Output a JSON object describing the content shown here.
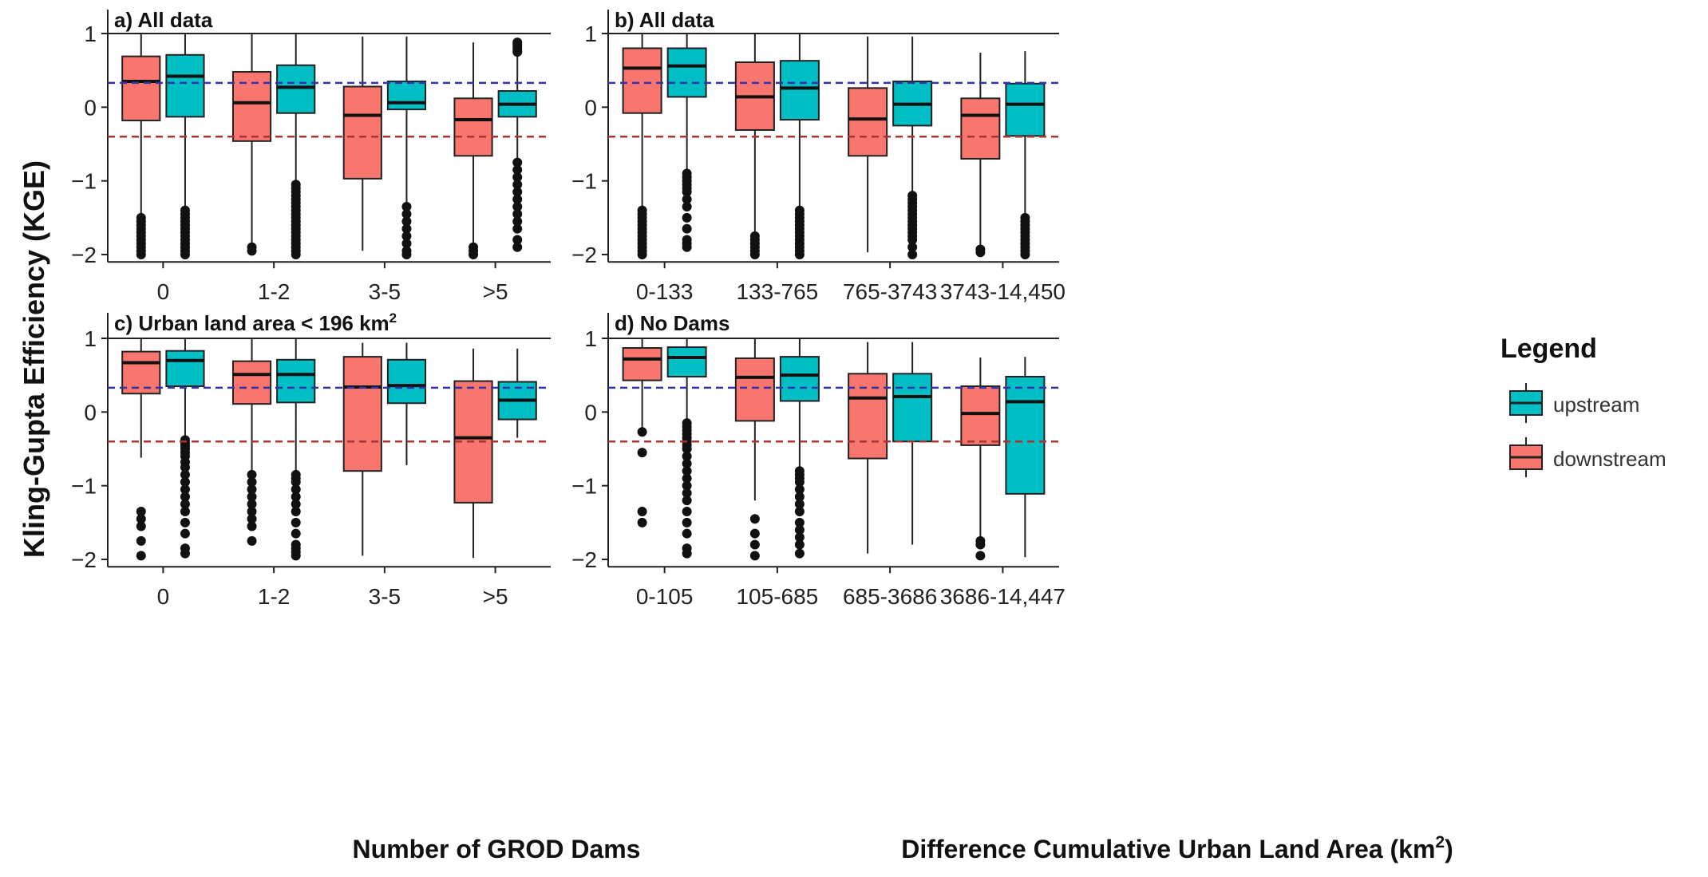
{
  "figure": {
    "y_axis_label": "Kling-Gupta Efficiency (KGE)",
    "legend": {
      "title": "Legend",
      "items": [
        {
          "label": "upstream",
          "color": "#00BFC4"
        },
        {
          "label": "downstream",
          "color": "#F8766D"
        }
      ]
    },
    "reference_lines": [
      {
        "name": "upstream-median-reference",
        "value": 0.33,
        "color": "#3333aa"
      },
      {
        "name": "downstream-median-reference",
        "value": -0.4,
        "color": "#aa3333"
      }
    ]
  },
  "chart_data": [
    {
      "type": "boxplot",
      "id": "a",
      "title": "a) All data",
      "xlabel": "",
      "ylabel": "Kling-Gupta Efficiency (KGE)",
      "ylim": [
        -2.1,
        1.05
      ],
      "yticks": [
        1,
        0,
        -1,
        -2
      ],
      "ytick_labels": [
        "1",
        "0",
        "−1",
        "−2"
      ],
      "categories": [
        "0",
        "1-2",
        "3-5",
        ">5"
      ],
      "series": [
        {
          "name": "downstream",
          "boxes": [
            {
              "min": -2.0,
              "q1": -0.18,
              "median": 0.35,
              "q3": 0.69,
              "max": 1.0,
              "outliers": [
                -1.5,
                -1.55,
                -1.6,
                -1.65,
                -1.7,
                -1.75,
                -1.8,
                -1.85,
                -1.9,
                -1.95,
                -2.0
              ]
            },
            {
              "min": -1.85,
              "q1": -0.46,
              "median": 0.06,
              "q3": 0.48,
              "max": 1.0,
              "outliers": [
                -1.9,
                -1.95
              ]
            },
            {
              "min": -1.95,
              "q1": -0.97,
              "median": -0.11,
              "q3": 0.28,
              "max": 0.96,
              "outliers": []
            },
            {
              "min": -1.85,
              "q1": -0.66,
              "median": -0.17,
              "q3": 0.12,
              "max": 0.88,
              "outliers": [
                -1.9,
                -1.95,
                -2.0
              ]
            }
          ]
        },
        {
          "name": "upstream",
          "boxes": [
            {
              "min": -2.0,
              "q1": -0.13,
              "median": 0.42,
              "q3": 0.71,
              "max": 1.0,
              "outliers": [
                -1.4,
                -1.45,
                -1.5,
                -1.55,
                -1.6,
                -1.65,
                -1.7,
                -1.75,
                -1.8,
                -1.85,
                -1.9,
                -1.95,
                -2.0
              ]
            },
            {
              "min": -1.0,
              "q1": -0.08,
              "median": 0.27,
              "q3": 0.57,
              "max": 1.0,
              "outliers": [
                -1.05,
                -1.1,
                -1.15,
                -1.2,
                -1.25,
                -1.3,
                -1.35,
                -1.4,
                -1.45,
                -1.5,
                -1.55,
                -1.6,
                -1.65,
                -1.7,
                -1.75,
                -1.8,
                -1.85,
                -1.9,
                -1.95,
                -2.0
              ]
            },
            {
              "min": -1.3,
              "q1": -0.03,
              "median": 0.06,
              "q3": 0.35,
              "max": 0.96,
              "outliers": [
                -1.35,
                -1.45,
                -1.55,
                -1.65,
                -1.75,
                -1.85,
                -1.95,
                -2.0
              ]
            },
            {
              "min": -0.7,
              "q1": -0.13,
              "median": 0.04,
              "q3": 0.22,
              "max": 0.72,
              "outliers": [
                0.75,
                0.78,
                0.82,
                0.85,
                0.88,
                -0.75,
                -0.85,
                -0.95,
                -1.05,
                -1.15,
                -1.25,
                -1.35,
                -1.45,
                -1.55,
                -1.65,
                -1.8,
                -1.9
              ]
            }
          ]
        }
      ]
    },
    {
      "type": "boxplot",
      "id": "b",
      "title": "b) All data",
      "xlabel": "",
      "ylabel": "",
      "ylim": [
        -2.1,
        1.05
      ],
      "yticks": [
        1,
        0,
        -1,
        -2
      ],
      "ytick_labels": [
        "1",
        "0",
        "−1",
        "−2"
      ],
      "categories": [
        "0-133",
        "133-765",
        "765-3743",
        "3743-14,450"
      ],
      "series": [
        {
          "name": "downstream",
          "boxes": [
            {
              "min": -1.35,
              "q1": -0.08,
              "median": 0.53,
              "q3": 0.8,
              "max": 1.0,
              "outliers": [
                -1.4,
                -1.45,
                -1.5,
                -1.55,
                -1.6,
                -1.65,
                -1.7,
                -1.75,
                -1.8,
                -1.85,
                -1.9,
                -1.95,
                -2.0
              ]
            },
            {
              "min": -1.7,
              "q1": -0.31,
              "median": 0.14,
              "q3": 0.61,
              "max": 1.0,
              "outliers": [
                -1.75,
                -1.8,
                -1.85,
                -1.9,
                -1.95,
                -2.0
              ]
            },
            {
              "min": -1.97,
              "q1": -0.66,
              "median": -0.16,
              "q3": 0.26,
              "max": 0.96,
              "outliers": []
            },
            {
              "min": -1.9,
              "q1": -0.7,
              "median": -0.11,
              "q3": 0.12,
              "max": 0.74,
              "outliers": [
                -1.93,
                -1.97
              ]
            }
          ]
        },
        {
          "name": "upstream",
          "boxes": [
            {
              "min": -0.85,
              "q1": 0.14,
              "median": 0.56,
              "q3": 0.8,
              "max": 1.0,
              "outliers": [
                -0.9,
                -0.95,
                -1.0,
                -1.05,
                -1.1,
                -1.15,
                -1.25,
                -1.35,
                -1.5,
                -1.65,
                -1.8,
                -1.85,
                -1.9
              ]
            },
            {
              "min": -1.35,
              "q1": -0.17,
              "median": 0.26,
              "q3": 0.63,
              "max": 1.0,
              "outliers": [
                -1.4,
                -1.45,
                -1.5,
                -1.55,
                -1.6,
                -1.65,
                -1.7,
                -1.75,
                -1.8,
                -1.85,
                -1.9,
                -1.95,
                -2.0
              ]
            },
            {
              "min": -1.15,
              "q1": -0.25,
              "median": 0.04,
              "q3": 0.35,
              "max": 0.96,
              "outliers": [
                -1.2,
                -1.25,
                -1.3,
                -1.35,
                -1.4,
                -1.45,
                -1.5,
                -1.55,
                -1.6,
                -1.65,
                -1.7,
                -1.75,
                -1.8,
                -1.9,
                -2.0
              ]
            },
            {
              "min": -1.45,
              "q1": -0.39,
              "median": 0.04,
              "q3": 0.32,
              "max": 0.76,
              "outliers": [
                -1.5,
                -1.55,
                -1.6,
                -1.65,
                -1.7,
                -1.75,
                -1.8,
                -1.85,
                -1.9,
                -1.95,
                -2.0
              ]
            }
          ]
        }
      ]
    },
    {
      "type": "boxplot",
      "id": "c",
      "title": "c) Urban land area < 196 km",
      "title_superscript": "2",
      "xlabel": "Number of GROD Dams",
      "ylabel": "",
      "ylim": [
        -2.1,
        1.05
      ],
      "yticks": [
        1,
        0,
        -1,
        -2
      ],
      "ytick_labels": [
        "1",
        "0",
        "−1",
        "−2"
      ],
      "categories": [
        "0",
        "1-2",
        "3-5",
        ">5"
      ],
      "series": [
        {
          "name": "downstream",
          "boxes": [
            {
              "min": -0.62,
              "q1": 0.25,
              "median": 0.67,
              "q3": 0.82,
              "max": 1.0,
              "outliers": [
                -1.35,
                -1.45,
                -1.55,
                -1.75,
                -1.95
              ]
            },
            {
              "min": -0.8,
              "q1": 0.11,
              "median": 0.51,
              "q3": 0.69,
              "max": 1.0,
              "outliers": [
                -0.85,
                -0.95,
                -1.05,
                -1.15,
                -1.25,
                -1.35,
                -1.45,
                -1.55,
                -1.75
              ]
            },
            {
              "min": -1.95,
              "q1": -0.8,
              "median": 0.34,
              "q3": 0.75,
              "max": 0.94,
              "outliers": []
            },
            {
              "min": -1.98,
              "q1": -1.23,
              "median": -0.35,
              "q3": 0.42,
              "max": 0.86,
              "outliers": []
            }
          ]
        },
        {
          "name": "upstream",
          "boxes": [
            {
              "min": -0.35,
              "q1": 0.35,
              "median": 0.7,
              "q3": 0.83,
              "max": 1.0,
              "outliers": [
                -0.38,
                -0.42,
                -0.46,
                -0.5,
                -0.55,
                -0.6,
                -0.68,
                -0.75,
                -0.85,
                -0.95,
                -1.05,
                -1.15,
                -1.25,
                -1.35,
                -1.5,
                -1.65,
                -1.85,
                -1.92
              ]
            },
            {
              "min": -0.8,
              "q1": 0.13,
              "median": 0.51,
              "q3": 0.71,
              "max": 1.0,
              "outliers": [
                -0.85,
                -0.9,
                -0.95,
                -1.05,
                -1.15,
                -1.25,
                -1.35,
                -1.5,
                -1.65,
                -1.8,
                -1.85,
                -1.9,
                -1.95
              ]
            },
            {
              "min": -0.72,
              "q1": 0.12,
              "median": 0.36,
              "q3": 0.71,
              "max": 0.94,
              "outliers": []
            },
            {
              "min": -0.35,
              "q1": -0.1,
              "median": 0.16,
              "q3": 0.41,
              "max": 0.86,
              "outliers": []
            }
          ]
        }
      ]
    },
    {
      "type": "boxplot",
      "id": "d",
      "title": "d) No Dams",
      "xlabel": "Difference Cumulative Urban Land Area (km",
      "xlabel_superscript": "2",
      "xlabel_suffix": ")",
      "ylabel": "",
      "ylim": [
        -2.1,
        1.05
      ],
      "yticks": [
        1,
        0,
        -1,
        -2
      ],
      "ytick_labels": [
        "1",
        "0",
        "−1",
        "−2"
      ],
      "categories": [
        "0-105",
        "105-685",
        "685-3686",
        "3686-14,447"
      ],
      "series": [
        {
          "name": "downstream",
          "boxes": [
            {
              "min": -0.22,
              "q1": 0.43,
              "median": 0.72,
              "q3": 0.87,
              "max": 1.0,
              "outliers": [
                -0.27,
                -0.55,
                -1.35,
                -1.5
              ]
            },
            {
              "min": -1.2,
              "q1": -0.12,
              "median": 0.47,
              "q3": 0.73,
              "max": 1.0,
              "outliers": [
                -1.45,
                -1.65,
                -1.8,
                -1.95
              ]
            },
            {
              "min": -1.92,
              "q1": -0.63,
              "median": 0.19,
              "q3": 0.52,
              "max": 0.95,
              "outliers": []
            },
            {
              "min": -1.7,
              "q1": -0.45,
              "median": -0.02,
              "q3": 0.35,
              "max": 0.74,
              "outliers": [
                -1.75,
                -1.8,
                -1.95
              ]
            }
          ]
        },
        {
          "name": "upstream",
          "boxes": [
            {
              "min": -0.12,
              "q1": 0.48,
              "median": 0.74,
              "q3": 0.88,
              "max": 1.0,
              "outliers": [
                -0.15,
                -0.2,
                -0.25,
                -0.3,
                -0.35,
                -0.4,
                -0.45,
                -0.5,
                -0.6,
                -0.7,
                -0.8,
                -0.9,
                -1.0,
                -1.1,
                -1.2,
                -1.35,
                -1.5,
                -1.65,
                -1.85,
                -1.92
              ]
            },
            {
              "min": -0.75,
              "q1": 0.15,
              "median": 0.5,
              "q3": 0.75,
              "max": 1.0,
              "outliers": [
                -0.8,
                -0.85,
                -0.9,
                -0.95,
                -1.05,
                -1.15,
                -1.25,
                -1.35,
                -1.5,
                -1.6,
                -1.7,
                -1.8,
                -1.92
              ]
            },
            {
              "min": -1.8,
              "q1": -0.4,
              "median": 0.21,
              "q3": 0.52,
              "max": 0.95,
              "outliers": []
            },
            {
              "min": -1.97,
              "q1": -1.11,
              "median": 0.14,
              "q3": 0.48,
              "max": 0.75,
              "outliers": []
            }
          ]
        }
      ]
    }
  ]
}
